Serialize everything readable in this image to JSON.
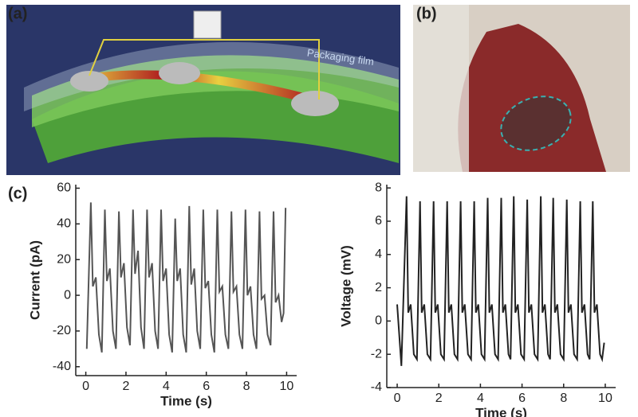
{
  "panels": {
    "a": "(a)",
    "b": "(b)",
    "c": "(c)"
  },
  "annotation": "Packaging film",
  "chart_data": [
    {
      "type": "line",
      "ylabel": "Current (pA)",
      "xlabel": "Time (s)",
      "xlim": [
        -0.5,
        10.5
      ],
      "xticks": [
        0,
        2,
        4,
        6,
        8,
        10
      ],
      "ylim": [
        -45,
        62
      ],
      "yticks": [
        -40,
        -20,
        0,
        20,
        40,
        60
      ],
      "series": [
        {
          "color": "#555555",
          "x": [
            0.05,
            0.25,
            0.35,
            0.5,
            0.65,
            0.8,
            0.95,
            1.05,
            1.2,
            1.35,
            1.5,
            1.65,
            1.75,
            1.9,
            2.05,
            2.2,
            2.35,
            2.45,
            2.6,
            2.75,
            2.9,
            3.05,
            3.15,
            3.3,
            3.45,
            3.6,
            3.75,
            3.85,
            4.0,
            4.15,
            4.3,
            4.45,
            4.55,
            4.7,
            4.85,
            5.0,
            5.15,
            5.25,
            5.4,
            5.55,
            5.7,
            5.85,
            5.95,
            6.1,
            6.25,
            6.4,
            6.55,
            6.65,
            6.8,
            6.95,
            7.1,
            7.25,
            7.35,
            7.5,
            7.65,
            7.8,
            7.95,
            8.05,
            8.2,
            8.35,
            8.5,
            8.65,
            8.75,
            8.9,
            9.05,
            9.2,
            9.35,
            9.45,
            9.6,
            9.75,
            9.85,
            9.95
          ],
          "values": [
            -30,
            52,
            5,
            10,
            -22,
            -32,
            48,
            8,
            15,
            -20,
            -30,
            47,
            10,
            18,
            -18,
            -28,
            48,
            12,
            25,
            -18,
            -30,
            48,
            10,
            18,
            -20,
            -30,
            48,
            8,
            15,
            -22,
            -32,
            43,
            8,
            15,
            -22,
            -32,
            50,
            6,
            15,
            -20,
            -30,
            48,
            4,
            8,
            -22,
            -32,
            48,
            2,
            5,
            -22,
            -30,
            47,
            2,
            5,
            -22,
            -30,
            48,
            0,
            5,
            -22,
            -30,
            47,
            -2,
            0,
            -22,
            -28,
            47,
            -4,
            0,
            -15,
            -10,
            49
          ]
        }
      ]
    },
    {
      "type": "line",
      "ylabel": "Voltage (mV)",
      "xlabel": "Time (s)",
      "xlim": [
        -0.5,
        10.5
      ],
      "xticks": [
        0,
        2,
        4,
        6,
        8,
        10
      ],
      "ylim": [
        -4,
        8.2
      ],
      "yticks": [
        -4,
        -2,
        0,
        2,
        4,
        6,
        8
      ],
      "series": [
        {
          "color": "#222222",
          "x": [
            0,
            0.2,
            0.45,
            0.53,
            0.65,
            0.8,
            0.95,
            1.1,
            1.18,
            1.3,
            1.45,
            1.6,
            1.75,
            1.83,
            1.95,
            2.1,
            2.25,
            2.4,
            2.48,
            2.6,
            2.75,
            2.9,
            3.05,
            3.13,
            3.25,
            3.4,
            3.55,
            3.7,
            3.78,
            3.9,
            4.05,
            4.2,
            4.35,
            4.43,
            4.55,
            4.7,
            4.85,
            5.0,
            5.08,
            5.2,
            5.35,
            5.45,
            5.6,
            5.68,
            5.8,
            5.95,
            6.1,
            6.25,
            6.33,
            6.45,
            6.6,
            6.75,
            6.9,
            6.98,
            7.1,
            7.25,
            7.35,
            7.5,
            7.58,
            7.7,
            7.85,
            8.0,
            8.15,
            8.23,
            8.35,
            8.5,
            8.65,
            8.8,
            8.88,
            9.0,
            9.15,
            9.25,
            9.4,
            9.48,
            9.6,
            9.75,
            9.85,
            9.95
          ],
          "values": [
            1.0,
            -2.7,
            7.5,
            0.5,
            1.0,
            -2.0,
            -2.3,
            7.2,
            0.5,
            1.0,
            -2.0,
            -2.3,
            7.2,
            0.5,
            1.0,
            -2.0,
            -2.3,
            7.2,
            0.5,
            1.0,
            -2.0,
            -2.3,
            7.2,
            0.5,
            1.0,
            -2.0,
            -2.3,
            7.2,
            0.5,
            1.0,
            -2.0,
            -2.3,
            7.4,
            0.5,
            1.0,
            -2.0,
            -2.3,
            7.4,
            0.5,
            1.0,
            -2.0,
            -2.3,
            7.5,
            0.5,
            1.0,
            -2.0,
            -2.3,
            7.3,
            0.5,
            1.0,
            -2.0,
            -2.3,
            7.5,
            0.5,
            1.0,
            -2.0,
            -2.3,
            7.4,
            0.5,
            1.0,
            -2.0,
            -2.3,
            7.3,
            0.5,
            1.0,
            -2.0,
            -2.3,
            7.2,
            0.5,
            1.0,
            -2.0,
            -2.3,
            7.2,
            0.5,
            1.0,
            -2.0,
            -2.3,
            -1.3
          ]
        }
      ]
    }
  ]
}
